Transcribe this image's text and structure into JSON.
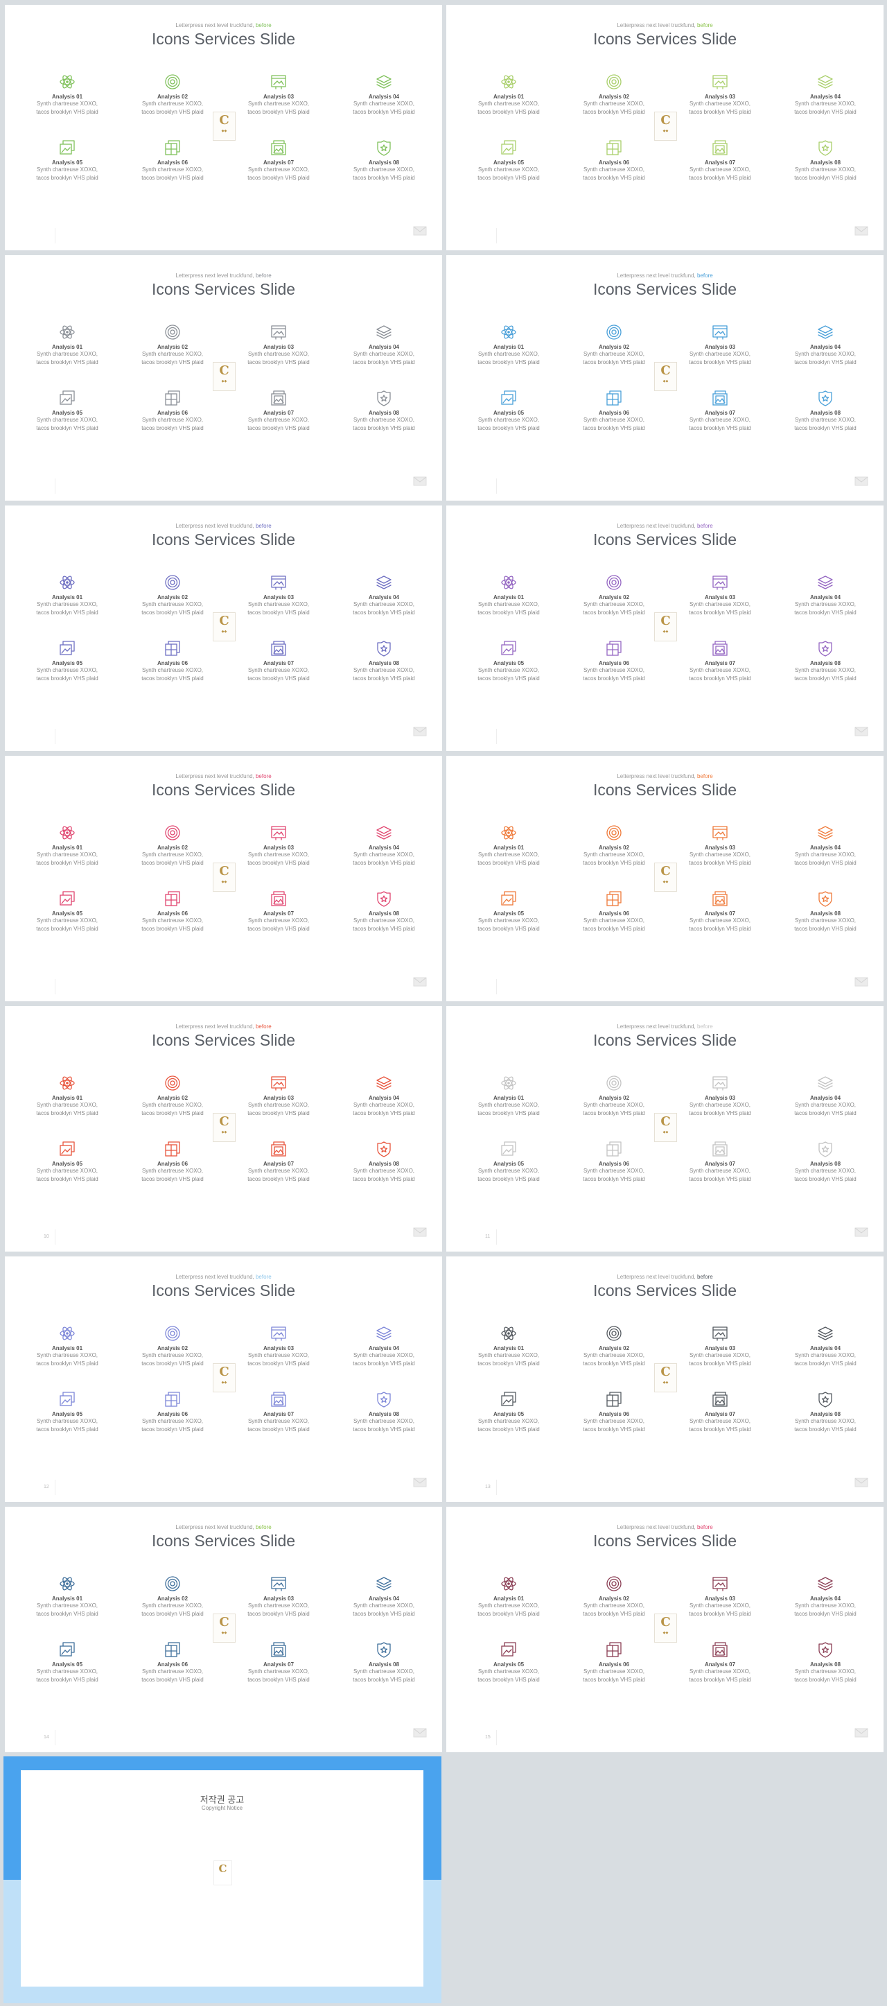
{
  "slides": [
    {
      "page": "",
      "icon_color": "#7fc15a",
      "tag_color": "#7fc15a"
    },
    {
      "page": "",
      "icon_color": "#a9cf6b",
      "tag_color": "#8bc34a"
    },
    {
      "page": "",
      "icon_color": "#8a8f96",
      "tag_color": "#8a8f96"
    },
    {
      "page": "",
      "icon_color": "#4aa0d9",
      "tag_color": "#4aa0d9"
    },
    {
      "page": "",
      "icon_color": "#6e6fc2",
      "tag_color": "#6e6fc2"
    },
    {
      "page": "",
      "icon_color": "#9466c2",
      "tag_color": "#9466c2"
    },
    {
      "page": "",
      "icon_color": "#e0456f",
      "tag_color": "#e0456f"
    },
    {
      "page": "",
      "icon_color": "#ef7a3a",
      "tag_color": "#ef7a3a"
    },
    {
      "page": "10",
      "icon_color": "#e8543c",
      "tag_color": "#e8543c"
    },
    {
      "page": "11",
      "icon_color": "#c4c4c4",
      "tag_color": "#c4c4c4"
    },
    {
      "page": "12",
      "icon_color": "#7d86d8",
      "tag_color": "#8ec6ea"
    },
    {
      "page": "13",
      "icon_color": "#555a60",
      "tag_color": "#555a60"
    },
    {
      "page": "14",
      "icon_color": "#3f6f9b",
      "tag_color": "#8bc34a"
    },
    {
      "page": "15",
      "icon_color": "#8b3f55",
      "tag_color": "#e0456f"
    }
  ],
  "slide_text": {
    "tagline": "Letterpress next level truckfund,",
    "tagline_accent": "before",
    "title": "Icons Services Slide",
    "item_desc_line1": "Synth chartreuse XOXO,",
    "item_desc_line2": "tacos brooklyn VHS plaid",
    "items": [
      {
        "label": "Analysis 01",
        "icon": "atom-icon"
      },
      {
        "label": "Analysis 02",
        "icon": "target-icon"
      },
      {
        "label": "Analysis 03",
        "icon": "image-frame-icon"
      },
      {
        "label": "Analysis 04",
        "icon": "layers-icon"
      },
      {
        "label": "Analysis 05",
        "icon": "gallery-icon"
      },
      {
        "label": "Analysis 06",
        "icon": "layout-grid-icon"
      },
      {
        "label": "Analysis 07",
        "icon": "picture-card-icon"
      },
      {
        "label": "Analysis 08",
        "icon": "star-badge-icon"
      }
    ],
    "logo_letter": "C"
  },
  "notice": {
    "title": "저작권 공고",
    "subtitle": "Copyright Notice",
    "top_color": "#4aa3ee",
    "bottom_color": "#bfe0f8",
    "logo_letter": "C"
  }
}
